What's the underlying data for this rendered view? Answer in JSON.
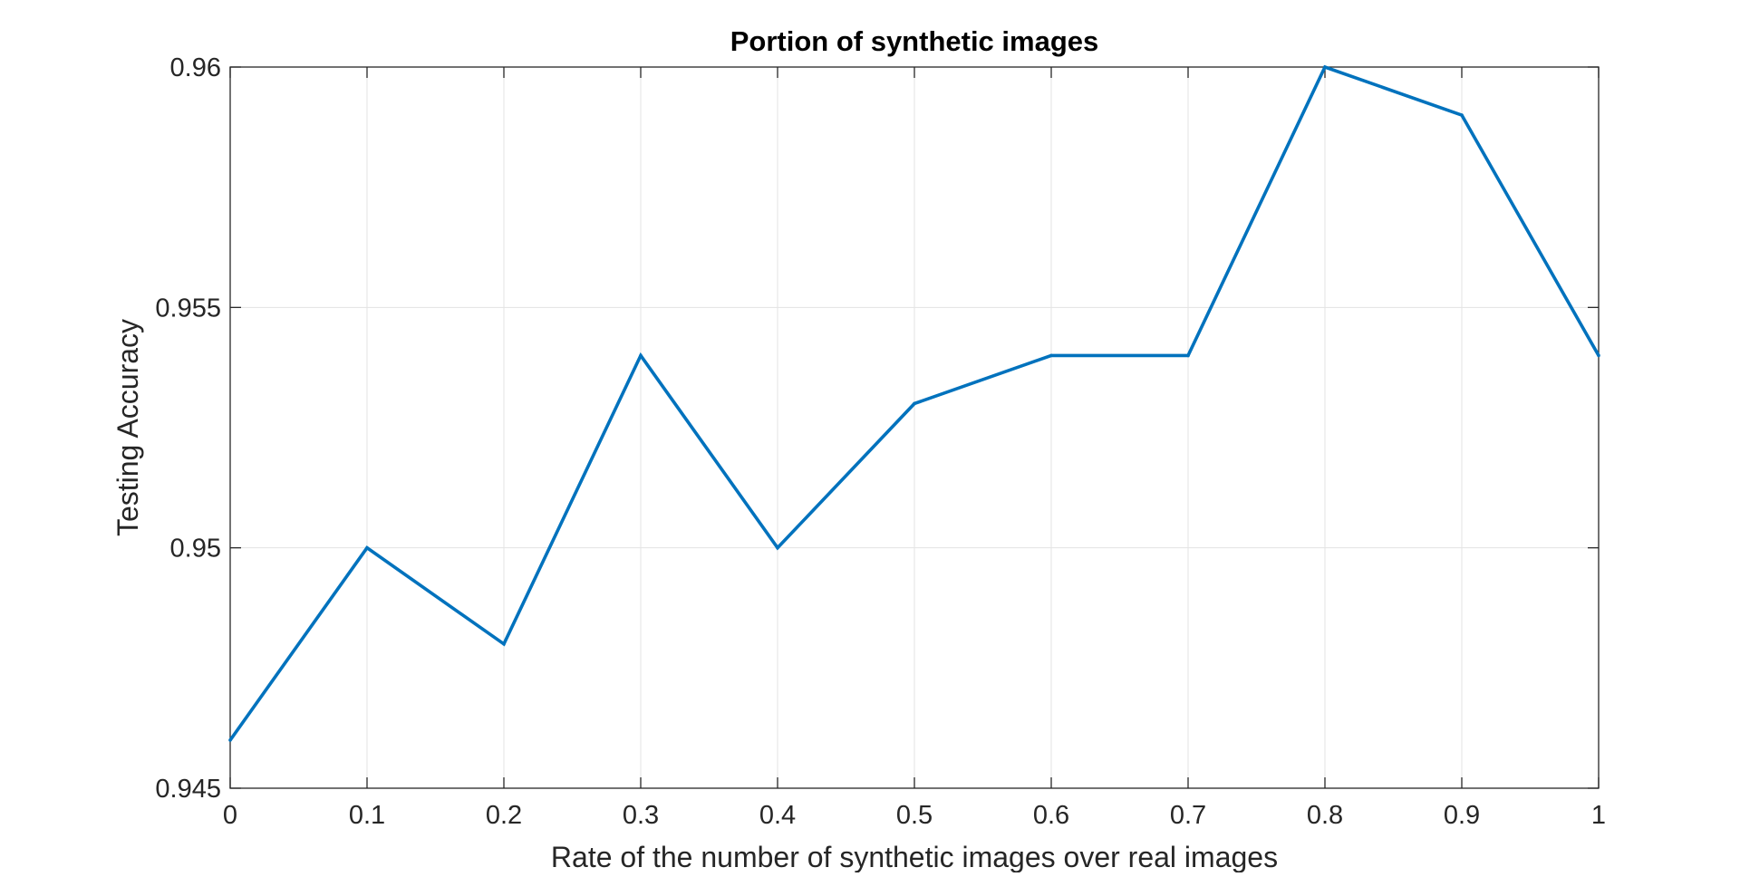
{
  "chart_data": {
    "type": "line",
    "title": "Portion of synthetic images",
    "xlabel": "Rate of the number of synthetic images over real images",
    "ylabel": "Testing Accuracy",
    "x": [
      0,
      0.1,
      0.2,
      0.3,
      0.4,
      0.5,
      0.6,
      0.7,
      0.8,
      0.9,
      1
    ],
    "series": [
      {
        "values": [
          0.946,
          0.95,
          0.948,
          0.954,
          0.95,
          0.953,
          0.954,
          0.954,
          0.96,
          0.959,
          0.954
        ],
        "color": "#0072BD"
      }
    ],
    "xlim": [
      0,
      1
    ],
    "ylim": [
      0.945,
      0.96
    ],
    "xticks": [
      0,
      0.1,
      0.2,
      0.3,
      0.4,
      0.5,
      0.6,
      0.7,
      0.8,
      0.9,
      1
    ],
    "xtick_labels": [
      "0",
      "0.1",
      "0.2",
      "0.3",
      "0.4",
      "0.5",
      "0.6",
      "0.7",
      "0.8",
      "0.9",
      "1"
    ],
    "yticks": [
      0.945,
      0.95,
      0.955,
      0.96
    ],
    "ytick_labels": [
      "0.945",
      "0.95",
      "0.955",
      "0.96"
    ],
    "grid": true,
    "legend": "none"
  }
}
